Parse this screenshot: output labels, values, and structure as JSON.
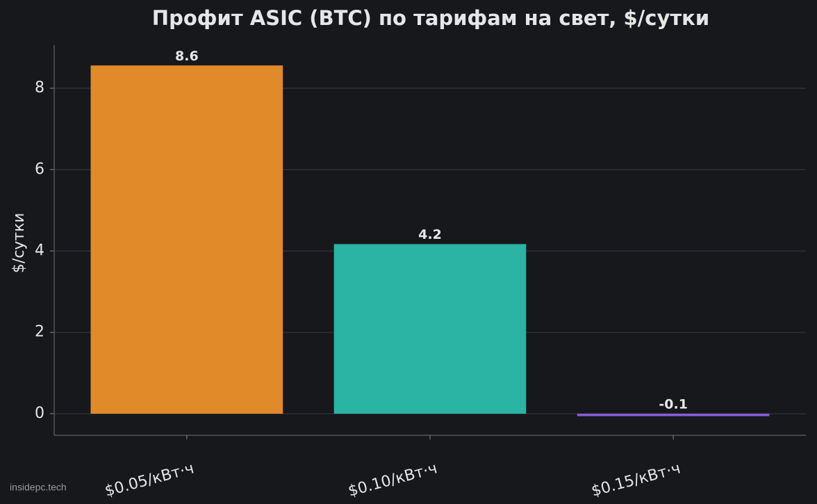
{
  "chart_data": {
    "type": "bar",
    "title": "Профит ASIC (BTC) по тарифам на свет, $/сутки",
    "y_label": "$/сутки",
    "categories": [
      "$0.05/кВт·ч",
      "$0.10/кВт·ч",
      "$0.15/кВт·ч"
    ],
    "values": [
      8.56,
      4.17,
      -0.06
    ],
    "value_labels": [
      "8.6",
      "4.2",
      "-0.1"
    ],
    "colors": [
      "#e08a2a",
      "#2bb3a3",
      "#8a5cdf"
    ],
    "ylim": [
      -0.53,
      9.06
    ],
    "yticks": [
      0,
      2,
      4,
      6,
      8
    ],
    "grid": true,
    "watermark": "insidepc.tech"
  }
}
